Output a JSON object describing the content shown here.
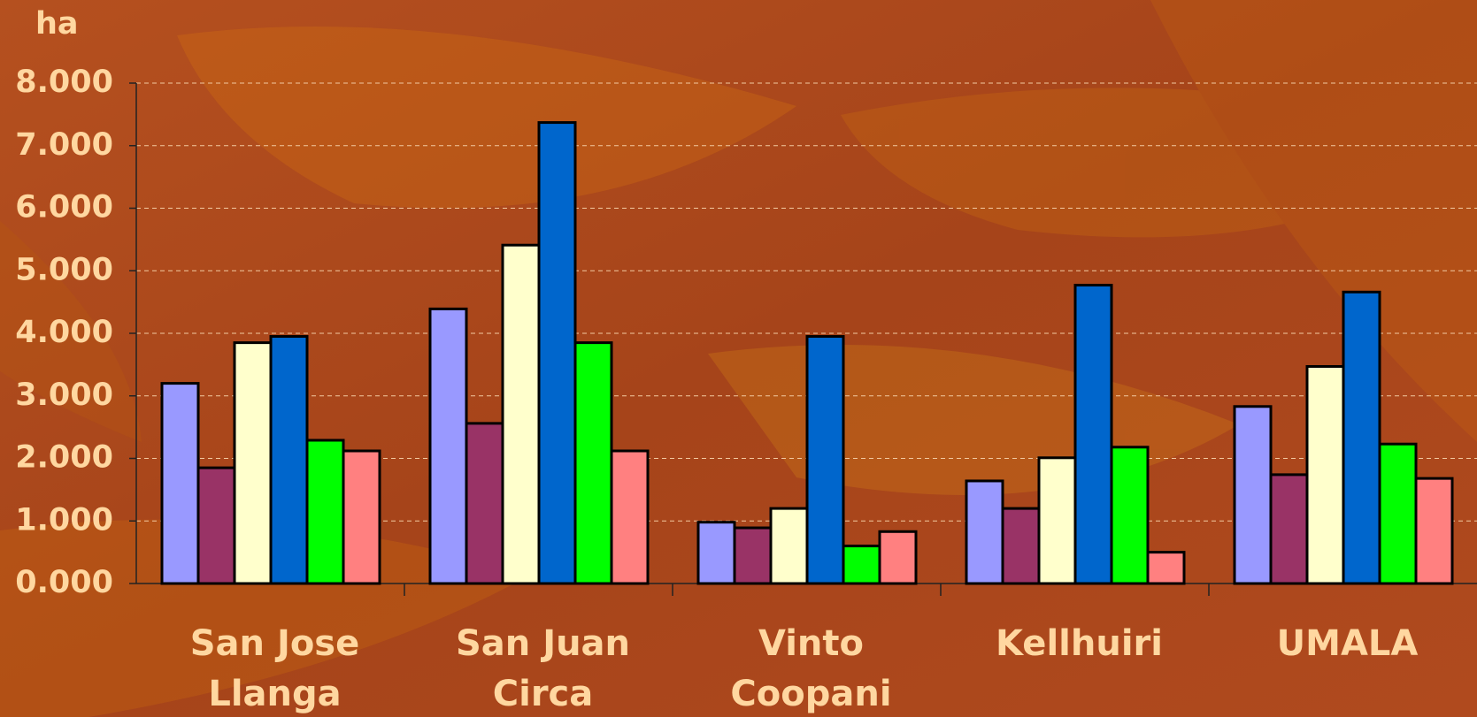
{
  "chart_data": {
    "type": "bar",
    "y_label": "ha",
    "categories": [
      "San Jose\nLlanga",
      "San Juan\nCirca",
      "Vinto\nCoopani",
      "Kellhuiri",
      "UMALA"
    ],
    "series": [
      {
        "color": "#9999ff",
        "values": [
          3200,
          4390,
          980,
          1640,
          2830
        ]
      },
      {
        "color": "#993366",
        "values": [
          1850,
          2560,
          890,
          1200,
          1740
        ]
      },
      {
        "color": "#ffffcc",
        "values": [
          3850,
          5410,
          1200,
          2010,
          3470
        ]
      },
      {
        "color": "#0066cc",
        "values": [
          3950,
          7370,
          3950,
          4770,
          4660
        ]
      },
      {
        "color": "#00ff00",
        "values": [
          2290,
          3850,
          600,
          2180,
          2230
        ]
      },
      {
        "color": "#ff8080",
        "values": [
          2120,
          2120,
          830,
          500,
          1680
        ]
      }
    ],
    "ylim": [
      0,
      8000
    ],
    "yticks": [
      {
        "value": 0,
        "label": "0.000"
      },
      {
        "value": 1000,
        "label": "1.000"
      },
      {
        "value": 2000,
        "label": "2.000"
      },
      {
        "value": 3000,
        "label": "3.000"
      },
      {
        "value": 4000,
        "label": "4.000"
      },
      {
        "value": 5000,
        "label": "5.000"
      },
      {
        "value": 6000,
        "label": "6.000"
      },
      {
        "value": 7000,
        "label": "7.000"
      },
      {
        "value": 8000,
        "label": "8.000"
      }
    ],
    "grid": true
  }
}
